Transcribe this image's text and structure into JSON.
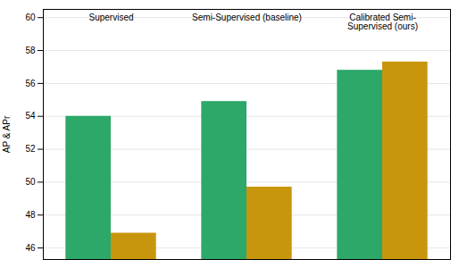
{
  "chart_data": {
    "type": "bar",
    "categories": [
      "Supervised",
      "Semi-Supervised (baseline)",
      "Calibrated Semi-\nSupervised (ours)"
    ],
    "series": [
      {
        "color": "#2ca868",
        "values": [
          54.0,
          54.9,
          56.8
        ]
      },
      {
        "color": "#c8960c",
        "values": [
          46.9,
          49.7,
          57.3
        ]
      }
    ],
    "ylabel": "AP & APr",
    "ylim": [
      45.3,
      60.5
    ],
    "yticks": [
      46,
      48,
      50,
      52,
      54,
      56,
      58,
      60
    ],
    "grid": true,
    "tick_labels": "y"
  }
}
